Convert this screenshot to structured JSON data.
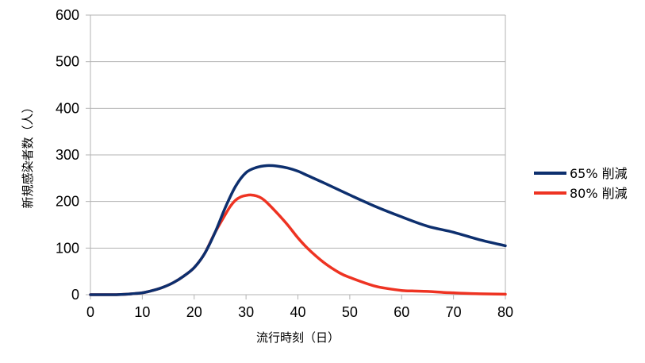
{
  "chart_data": {
    "type": "line",
    "title": "",
    "xlabel": "流行時刻（日）",
    "ylabel": "新規感染者数（人）",
    "xlim": [
      0,
      80
    ],
    "ylim": [
      0,
      600
    ],
    "x_ticks": [
      "0",
      "10",
      "20",
      "30",
      "40",
      "50",
      "60",
      "70",
      "80"
    ],
    "y_ticks": [
      "0",
      "100",
      "200",
      "300",
      "400",
      "500",
      "600"
    ],
    "grid": "horizontal",
    "legend_position": "right",
    "series": [
      {
        "name": "65% 削減",
        "color": "#0d2f6e",
        "x": [
          0,
          5,
          7,
          8,
          10,
          12,
          14,
          16,
          18,
          20,
          22,
          24,
          26,
          28,
          30,
          32,
          34,
          36,
          38,
          40,
          42,
          45,
          50,
          55,
          60,
          65,
          70,
          75,
          80
        ],
        "y": [
          0,
          0,
          1,
          2,
          4,
          9,
          16,
          26,
          40,
          58,
          88,
          133,
          187,
          233,
          262,
          273,
          277,
          276,
          272,
          265,
          255,
          240,
          214,
          189,
          167,
          147,
          134,
          118,
          105
        ]
      },
      {
        "name": "80% 削減",
        "color": "#ee3322",
        "x": [
          0,
          5,
          7,
          8,
          10,
          12,
          14,
          16,
          18,
          20,
          22,
          24,
          26,
          27,
          28,
          29,
          30,
          31,
          32,
          33,
          34,
          36,
          38,
          40,
          42,
          45,
          48,
          50,
          55,
          60,
          62,
          65,
          68,
          70,
          72,
          75,
          80
        ],
        "y": [
          0,
          0,
          1,
          2,
          4,
          9,
          16,
          26,
          40,
          58,
          88,
          133,
          172,
          190,
          203,
          210,
          213,
          214,
          212,
          207,
          198,
          175,
          150,
          122,
          98,
          69,
          47,
          37,
          18,
          9,
          8,
          7,
          5,
          4,
          3,
          2,
          1
        ]
      }
    ]
  }
}
